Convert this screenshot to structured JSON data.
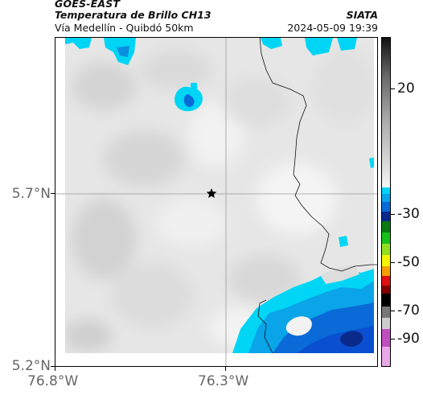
{
  "header": {
    "satellite": "GOES-EAST",
    "product": "Temperatura de Brillo CH13",
    "region": "Vía Medellín - Quibdó 50km",
    "organization": "SIATA",
    "datetime": "2024-05-09 19:39"
  },
  "map": {
    "y_ticks": [
      "5.7°N",
      "5.2°N"
    ],
    "x_ticks": [
      "76.8°W",
      "76.3°W"
    ],
    "marker": "star-marker"
  },
  "colorbar": {
    "labels": [
      "20",
      "-30",
      "-50",
      "-70",
      "-90"
    ],
    "colors": {
      "warm_gray": "#e4e4e4",
      "cyan": "#00d5f5",
      "blue": "#0a4fd0",
      "navy": "#0a2a8a",
      "green": "#18c018",
      "yellow": "#f5f500",
      "red": "#e01010",
      "black": "#000000",
      "magenta": "#c050c0"
    }
  }
}
